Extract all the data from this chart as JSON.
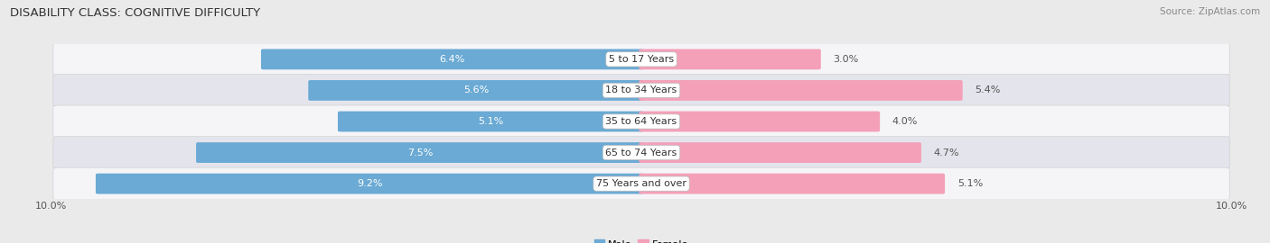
{
  "title": "DISABILITY CLASS: COGNITIVE DIFFICULTY",
  "source": "Source: ZipAtlas.com",
  "categories": [
    "5 to 17 Years",
    "18 to 34 Years",
    "35 to 64 Years",
    "65 to 74 Years",
    "75 Years and over"
  ],
  "male_values": [
    6.4,
    5.6,
    5.1,
    7.5,
    9.2
  ],
  "female_values": [
    3.0,
    5.4,
    4.0,
    4.7,
    5.1
  ],
  "male_color_1": "#a8c8e8",
  "male_color_2": "#6aaad4",
  "female_color_1": "#f4a0b8",
  "female_color_2": "#e8607c",
  "axis_max": 10.0,
  "bar_height": 0.58,
  "background_color": "#eaeaea",
  "row_bg_colors": [
    "#f5f5f8",
    "#e4e4ec"
  ],
  "label_fontsize": 8.0,
  "title_fontsize": 9.5,
  "source_fontsize": 7.5,
  "value_color_inside": "white",
  "value_color_outside": "#555555",
  "center_label_color": "#333333"
}
